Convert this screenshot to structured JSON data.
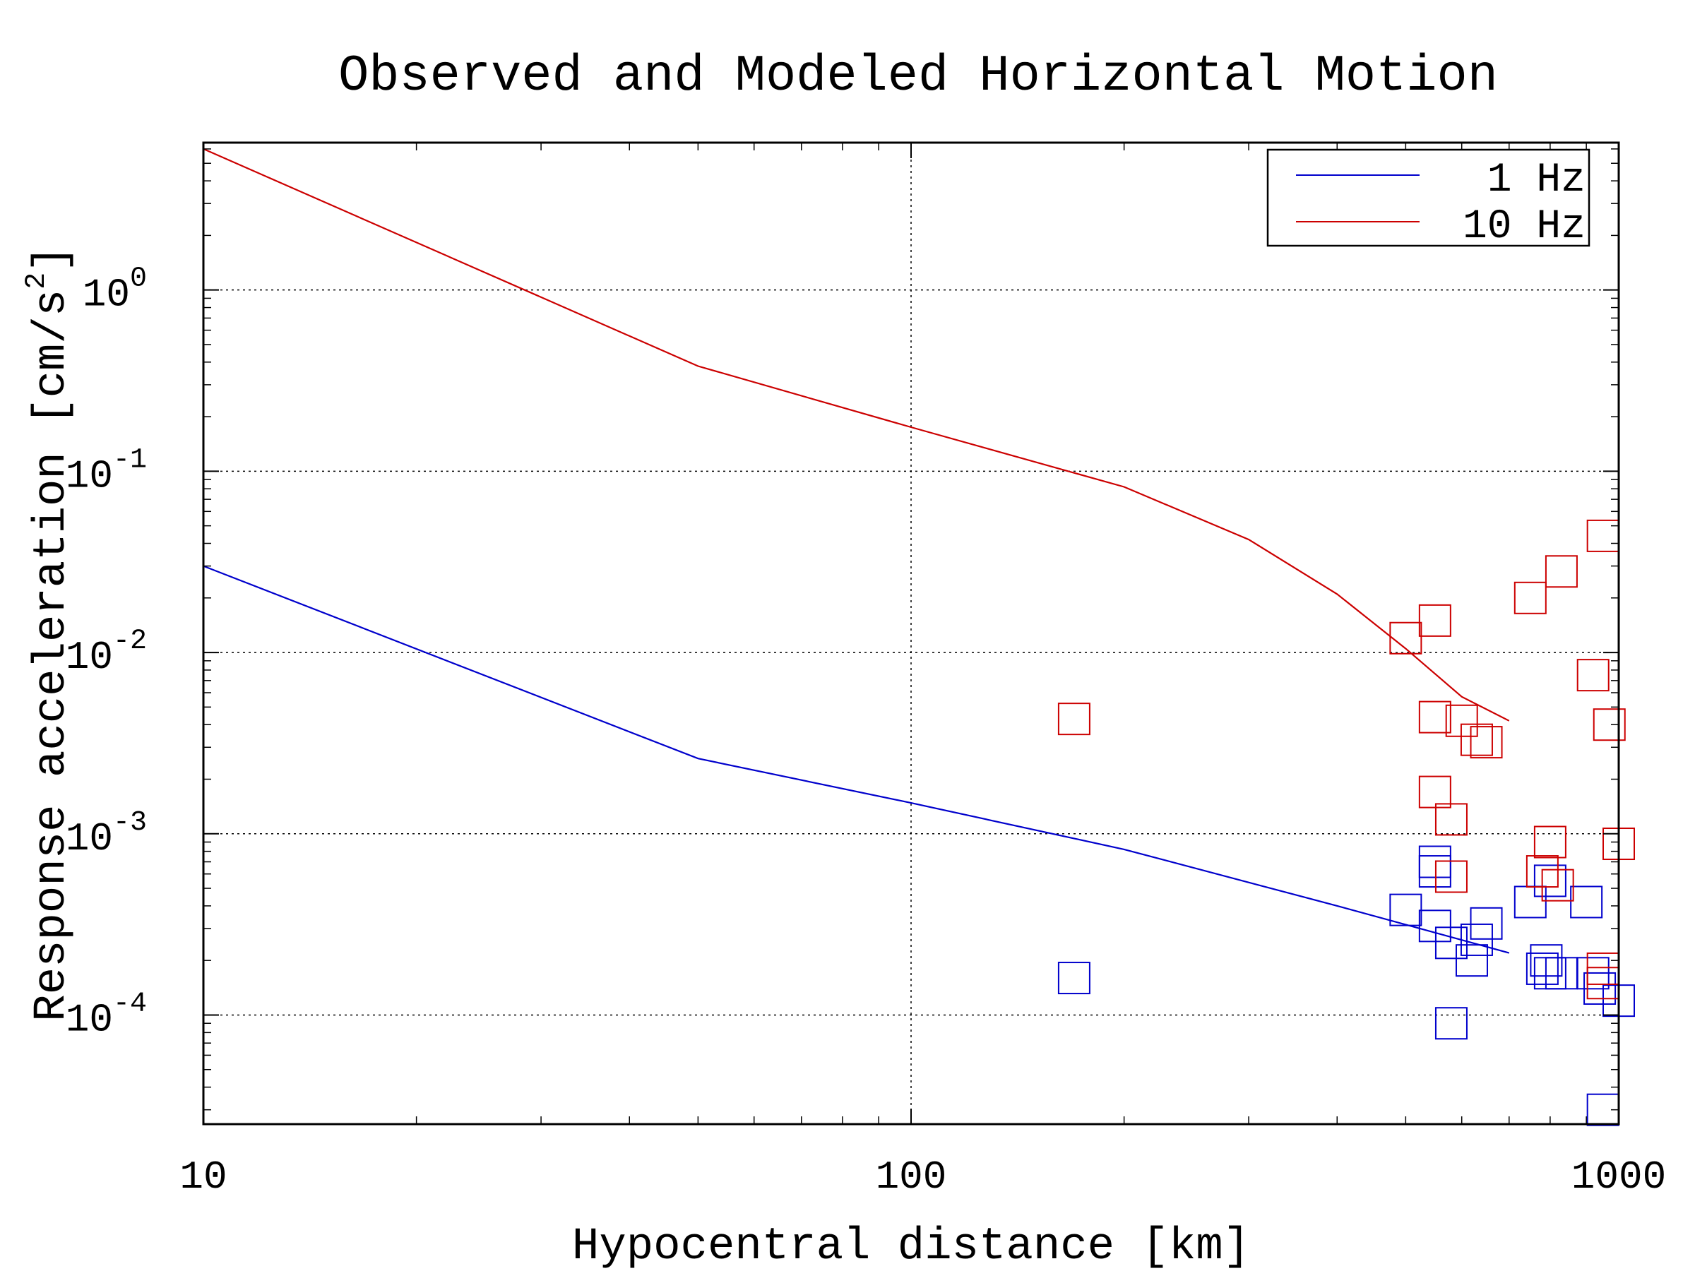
{
  "chart_data": {
    "type": "scatter",
    "title": "Observed and Modeled Horizontal Motion",
    "xlabel": "Hypocentral distance [km]",
    "ylabel": "Response acceleration [cm/s",
    "ylabel_exponent": "2",
    "ylabel_close": "]",
    "x_scale": "log",
    "y_scale": "log",
    "xlim": [
      10,
      1000
    ],
    "ylim": [
      2.5e-05,
      6.5
    ],
    "grid": true,
    "legend_position": "top-right",
    "x_ticks": [
      {
        "value": 10,
        "label": "10"
      },
      {
        "value": 100,
        "label": "100"
      },
      {
        "value": 1000,
        "label": "1000"
      }
    ],
    "y_ticks": [
      {
        "value": 1,
        "base": "10",
        "exponent": "0"
      },
      {
        "value": 0.1,
        "base": "10",
        "exponent": "-1"
      },
      {
        "value": 0.01,
        "base": "10",
        "exponent": "-2"
      },
      {
        "value": 0.001,
        "base": "10",
        "exponent": "-3"
      },
      {
        "value": 0.0001,
        "base": "10",
        "exponent": "-4"
      }
    ],
    "series": [
      {
        "name": "1 Hz",
        "color": "#0000cc",
        "line": [
          [
            10,
            0.03
          ],
          [
            50,
            0.0026
          ],
          [
            100,
            0.00148
          ],
          [
            200,
            0.00082
          ],
          [
            400,
            0.0004
          ],
          [
            700,
            0.00022
          ]
        ],
        "points": [
          [
            170,
            0.00016
          ],
          [
            500,
            0.00038
          ],
          [
            550,
            0.0007
          ],
          [
            550,
            0.00062
          ],
          [
            550,
            0.00031
          ],
          [
            580,
            0.00025
          ],
          [
            580,
            9e-05
          ],
          [
            630,
            0.00026
          ],
          [
            620,
            0.0002
          ],
          [
            650,
            0.00032
          ],
          [
            750,
            0.00042
          ],
          [
            780,
            0.00018
          ],
          [
            790,
            0.0002
          ],
          [
            800,
            0.00055
          ],
          [
            800,
            0.00017
          ],
          [
            830,
            0.00017
          ],
          [
            900,
            0.00042
          ],
          [
            920,
            0.00017
          ],
          [
            940,
            0.00014
          ],
          [
            1000,
            0.00012
          ],
          [
            950,
            3e-05
          ]
        ]
      },
      {
        "name": "10 Hz",
        "color": "#cc0000",
        "line": [
          [
            10,
            6
          ],
          [
            50,
            0.38
          ],
          [
            100,
            0.175
          ],
          [
            200,
            0.082
          ],
          [
            300,
            0.042
          ],
          [
            400,
            0.021
          ],
          [
            500,
            0.0105
          ],
          [
            600,
            0.0057
          ],
          [
            700,
            0.0042
          ]
        ],
        "points": [
          [
            170,
            0.0043
          ],
          [
            500,
            0.012
          ],
          [
            550,
            0.015
          ],
          [
            550,
            0.0044
          ],
          [
            600,
            0.0042
          ],
          [
            630,
            0.0033
          ],
          [
            650,
            0.0032
          ],
          [
            550,
            0.0017
          ],
          [
            580,
            0.0012
          ],
          [
            580,
            0.00058
          ],
          [
            750,
            0.02
          ],
          [
            830,
            0.028
          ],
          [
            950,
            0.044
          ],
          [
            920,
            0.0075
          ],
          [
            970,
            0.004
          ],
          [
            800,
            0.0009
          ],
          [
            780,
            0.00062
          ],
          [
            820,
            0.00052
          ],
          [
            1000,
            0.00088
          ],
          [
            950,
            0.00018
          ],
          [
            950,
            0.00015
          ]
        ]
      }
    ]
  }
}
